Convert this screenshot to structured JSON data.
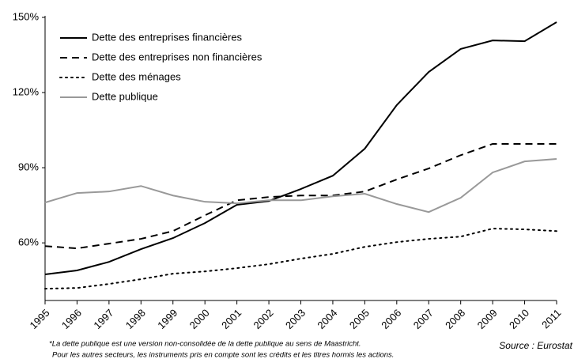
{
  "chart_data": {
    "type": "line",
    "x": [
      1995,
      1996,
      1997,
      1998,
      1999,
      2000,
      2001,
      2002,
      2003,
      2004,
      2005,
      2006,
      2007,
      2008,
      2009,
      2010,
      2011
    ],
    "xlim": [
      1995,
      2011
    ],
    "ylim": [
      37,
      150
    ],
    "yticks": [
      {
        "value": 60,
        "label": "60%"
      },
      {
        "value": 90,
        "label": "90%"
      },
      {
        "value": 120,
        "label": "120%"
      },
      {
        "value": 150,
        "label": "150%"
      }
    ],
    "series": [
      {
        "name": "Dette des entreprises financières",
        "color": "#000000",
        "style": "solid",
        "values": [
          47.4,
          49,
          52.4,
          57.5,
          61.9,
          67.9,
          75.2,
          76.7,
          81.5,
          86.8,
          97.6,
          115,
          128.2,
          137.4,
          140.8,
          140.5,
          148.1
        ]
      },
      {
        "name": "Dette des entreprises non financières",
        "color": "#000000",
        "style": "dashed",
        "values": [
          58.7,
          57.8,
          59.7,
          61.6,
          64.7,
          71,
          77,
          78.3,
          78.9,
          78.9,
          80.5,
          85.3,
          89.7,
          95,
          99.5,
          99.5,
          99.5
        ]
      },
      {
        "name": "Dette des ménages",
        "color": "#000000",
        "style": "dotted",
        "values": [
          41.7,
          42,
          43.6,
          45.5,
          47.7,
          48.6,
          49.9,
          51.5,
          53.7,
          55.6,
          58.4,
          60.3,
          61.6,
          62.5,
          65.7,
          65.4,
          64.7
        ]
      },
      {
        "name": "Dette publique",
        "color": "#999999",
        "style": "solid",
        "values": [
          76.1,
          79.9,
          80.5,
          82.7,
          78.9,
          76.4,
          75.8,
          77,
          77,
          78.6,
          79.6,
          75.5,
          72.3,
          78,
          88.1,
          92.5,
          93.5
        ]
      }
    ],
    "footnotes": [
      "*La dette publique est une version non-consolidée de la dette publique au sens de Maastricht.",
      "Pour les autres secteurs, les instruments pris en compte sont les crédits et les titres hormis les actions."
    ],
    "source": "Source : Eurostat"
  }
}
